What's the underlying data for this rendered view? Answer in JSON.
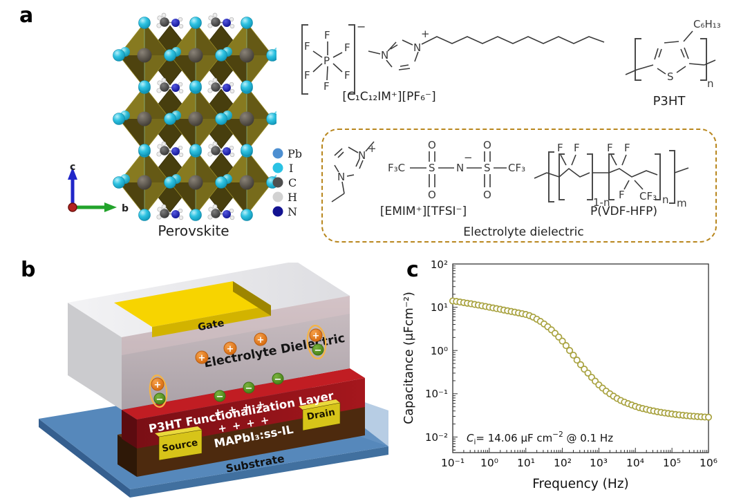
{
  "panels": {
    "a": "a",
    "b": "b",
    "c": "c"
  },
  "panel_a": {
    "perovskite_caption": "Perovskite",
    "axis": {
      "c": "c",
      "b": "b"
    },
    "legend": [
      {
        "label": "Pb",
        "color": "#4d8fd1"
      },
      {
        "label": "I",
        "color": "#2ac2e4"
      },
      {
        "label": "C",
        "color": "#4f4f4f"
      },
      {
        "label": "H",
        "color": "#d2d2d2"
      },
      {
        "label": "N",
        "color": "#121291"
      }
    ],
    "pf6": {
      "label": "[C₁C₁₂IM⁺][PF₆⁻]",
      "P": "P",
      "F": "F",
      "charge": "−"
    },
    "im": {
      "N": "N",
      "plus": "+"
    },
    "p3ht": {
      "label": "P3HT",
      "side_chain": "C₆H₁₃",
      "S": "S",
      "n": "n"
    },
    "dashed_box": {
      "emim": {
        "N": "N",
        "plus": "+"
      },
      "tfsi": {
        "f3c": "F₃C",
        "S": "S",
        "N": "N",
        "minus": "−",
        "O": "O",
        "cf3": "CF₃",
        "label": "[EMIM⁺][TFSI⁻]"
      },
      "pvdf": {
        "F": "F",
        "cf3": "CF₃",
        "sub1": "1-n",
        "subn": "n",
        "subm": "m",
        "label": "P(VDF-HFP)"
      },
      "caption": "Electrolyte dielectric",
      "border_color": "#b8861d"
    }
  },
  "panel_b": {
    "gate": "Gate",
    "electrolyte": "Electrolyte Dielectric",
    "p3ht_layer": "P3HT Functionalization Layer",
    "mapbi": "MAPbI₃:ss-IL",
    "substrate": "Substrate",
    "source": "Source",
    "drain": "Drain",
    "plus_row": "+ + + +",
    "plus": "+",
    "minus": "−"
  },
  "panel_c": {
    "ylabel": "Capacitance (μFcm⁻²)",
    "xlabel": "Frequency (Hz)",
    "yticks": [
      "10²",
      "10¹",
      "10⁰",
      "10⁻¹",
      "10⁻²"
    ],
    "xticks": [
      "10⁻¹",
      "10⁰",
      "10¹",
      "10²",
      "10³",
      "10⁴",
      "10⁵",
      "10⁶"
    ],
    "annotation": {
      "c": "C",
      "sub": "i",
      "mid": "= 14.06 μF cm",
      "sup": "−2",
      "tail": " @ 0.1 Hz"
    },
    "marker_color": "#a8a23f"
  },
  "chart_data": {
    "type": "scatter",
    "title": "",
    "xlabel": "Frequency (Hz)",
    "ylabel": "Capacitance (μFcm⁻²)",
    "x_scale": "log",
    "y_scale": "log",
    "xlim": [
      0.1,
      1000000
    ],
    "ylim": [
      0.0044,
      100
    ],
    "grid": false,
    "legend_position": "none",
    "annotation": "Ci = 14.06 μF cm−2 @ 0.1 Hz",
    "series": [
      {
        "name": "capacitance",
        "marker": "open-circle",
        "color": "#a8a23f",
        "points": [
          [
            0.1,
            14.0
          ],
          [
            0.126,
            13.6
          ],
          [
            0.158,
            13.2
          ],
          [
            0.2,
            12.8
          ],
          [
            0.251,
            12.4
          ],
          [
            0.316,
            12.0
          ],
          [
            0.398,
            11.6
          ],
          [
            0.501,
            11.2
          ],
          [
            0.631,
            10.8
          ],
          [
            0.794,
            10.4
          ],
          [
            1.0,
            10.0
          ],
          [
            1.26,
            9.65
          ],
          [
            1.58,
            9.3
          ],
          [
            2.0,
            8.95
          ],
          [
            2.51,
            8.6
          ],
          [
            3.16,
            8.3
          ],
          [
            3.98,
            8.0
          ],
          [
            5.01,
            7.7
          ],
          [
            6.31,
            7.4
          ],
          [
            7.94,
            7.1
          ],
          [
            10,
            6.8
          ],
          [
            12.6,
            6.4
          ],
          [
            15.8,
            5.9
          ],
          [
            20,
            5.3
          ],
          [
            25.1,
            4.7
          ],
          [
            31.6,
            4.1
          ],
          [
            39.8,
            3.55
          ],
          [
            50.1,
            3.0
          ],
          [
            63.1,
            2.5
          ],
          [
            79.4,
            2.05
          ],
          [
            100,
            1.65
          ],
          [
            126,
            1.3
          ],
          [
            158,
            1.0
          ],
          [
            200,
            0.78
          ],
          [
            251,
            0.6
          ],
          [
            316,
            0.47
          ],
          [
            398,
            0.37
          ],
          [
            501,
            0.3
          ],
          [
            631,
            0.24
          ],
          [
            794,
            0.195
          ],
          [
            1000,
            0.16
          ],
          [
            1260,
            0.135
          ],
          [
            1580,
            0.115
          ],
          [
            2000,
            0.1
          ],
          [
            2510,
            0.088
          ],
          [
            3160,
            0.078
          ],
          [
            3980,
            0.07
          ],
          [
            5010,
            0.064
          ],
          [
            6310,
            0.059
          ],
          [
            7940,
            0.055
          ],
          [
            10000,
            0.051
          ],
          [
            12600,
            0.048
          ],
          [
            15800,
            0.0455
          ],
          [
            20000,
            0.0435
          ],
          [
            25100,
            0.0415
          ],
          [
            31600,
            0.04
          ],
          [
            39800,
            0.0385
          ],
          [
            50100,
            0.0372
          ],
          [
            63100,
            0.036
          ],
          [
            79400,
            0.035
          ],
          [
            100000,
            0.034
          ],
          [
            126000,
            0.0332
          ],
          [
            158000,
            0.0325
          ],
          [
            200000,
            0.0318
          ],
          [
            251000,
            0.0312
          ],
          [
            316000,
            0.0306
          ],
          [
            398000,
            0.0301
          ],
          [
            501000,
            0.0297
          ],
          [
            631000,
            0.0293
          ],
          [
            794000,
            0.029
          ],
          [
            1000000,
            0.0287
          ]
        ]
      }
    ]
  }
}
